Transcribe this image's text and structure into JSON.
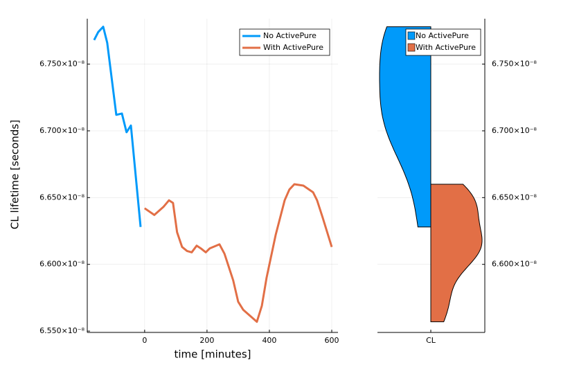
{
  "chart_data": [
    {
      "type": "line",
      "xlabel": "time [minutes]",
      "ylabel": "CL lifetime [seconds]",
      "xlim": [
        -184,
        620
      ],
      "xticks": [
        0,
        200,
        400,
        600
      ],
      "ylim": [
        6.549e-08,
        6.784e-08
      ],
      "yticks": [
        {
          "value": 6.55e-08,
          "label": "6.550×10⁻⁸"
        },
        {
          "value": 6.6e-08,
          "label": "6.600×10⁻⁸"
        },
        {
          "value": 6.65e-08,
          "label": "6.650×10⁻⁸"
        },
        {
          "value": 6.7e-08,
          "label": "6.700×10⁻⁸"
        },
        {
          "value": 6.75e-08,
          "label": "6.750×10⁻⁸"
        }
      ],
      "grid": true,
      "legend": "top-right",
      "series": [
        {
          "name": "No ActivePure",
          "color": "#009afa",
          "x": [
            -162,
            -149,
            -133,
            -120,
            -91,
            -73,
            -58,
            -44,
            -13
          ],
          "values": [
            6.768e-08,
            6.774e-08,
            6.778e-08,
            6.766e-08,
            6.712e-08,
            6.713e-08,
            6.699e-08,
            6.704e-08,
            6.628e-08
          ]
        },
        {
          "name": "With ActivePure",
          "color": "#e26f46",
          "x": [
            0,
            31,
            60,
            78,
            91,
            104,
            120,
            136,
            151,
            167,
            180,
            196,
            209,
            240,
            256,
            284,
            300,
            316,
            360,
            376,
            391,
            420,
            449,
            464,
            480,
            509,
            540,
            553,
            571,
            600
          ],
          "values": [
            6.642e-08,
            6.637e-08,
            6.643e-08,
            6.648e-08,
            6.646e-08,
            6.624e-08,
            6.613e-08,
            6.61e-08,
            6.609e-08,
            6.614e-08,
            6.612e-08,
            6.609e-08,
            6.612e-08,
            6.615e-08,
            6.608e-08,
            6.588e-08,
            6.572e-08,
            6.566e-08,
            6.557e-08,
            6.569e-08,
            6.59e-08,
            6.622e-08,
            6.648e-08,
            6.656e-08,
            6.66e-08,
            6.659e-08,
            6.654e-08,
            6.648e-08,
            6.635e-08,
            6.613e-08
          ]
        }
      ]
    },
    {
      "type": "violin",
      "categories": [
        "CL"
      ],
      "ylim": [
        6.549e-08,
        6.784e-08
      ],
      "yticks": [
        {
          "value": 6.6e-08,
          "label": "6.600×10⁻⁸"
        },
        {
          "value": 6.65e-08,
          "label": "6.650×10⁻⁸"
        },
        {
          "value": 6.7e-08,
          "label": "6.700×10⁻⁸"
        },
        {
          "value": 6.75e-08,
          "label": "6.750×10⁻⁸"
        }
      ],
      "grid": true,
      "legend": "top-right",
      "series": [
        {
          "name": "No ActivePure",
          "color": "#009afa",
          "values": [
            6.768e-08,
            6.774e-08,
            6.778e-08,
            6.766e-08,
            6.712e-08,
            6.713e-08,
            6.699e-08,
            6.704e-08,
            6.628e-08
          ]
        },
        {
          "name": "With ActivePure",
          "color": "#e26f46",
          "values": [
            6.642e-08,
            6.637e-08,
            6.643e-08,
            6.648e-08,
            6.646e-08,
            6.624e-08,
            6.613e-08,
            6.61e-08,
            6.609e-08,
            6.614e-08,
            6.612e-08,
            6.609e-08,
            6.612e-08,
            6.615e-08,
            6.608e-08,
            6.588e-08,
            6.572e-08,
            6.566e-08,
            6.557e-08,
            6.569e-08,
            6.59e-08,
            6.622e-08,
            6.648e-08,
            6.656e-08,
            6.66e-08,
            6.659e-08,
            6.654e-08,
            6.648e-08,
            6.635e-08,
            6.613e-08
          ]
        }
      ]
    }
  ]
}
